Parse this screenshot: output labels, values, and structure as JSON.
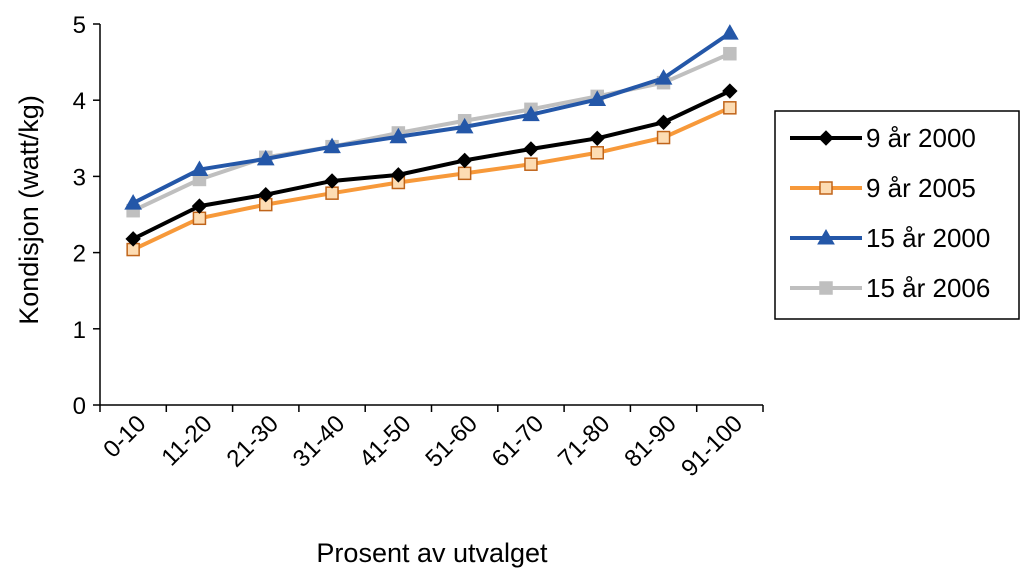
{
  "chart_data": {
    "type": "line",
    "title": "",
    "xlabel": "Prosent av utvalget",
    "ylabel": "Kondisjon (watt/kg)",
    "ylim": [
      0,
      5
    ],
    "yticks": [
      "0",
      "1",
      "2",
      "3",
      "4",
      "5"
    ],
    "categories": [
      "0-10",
      "11-20",
      "21-30",
      "31-40",
      "41-50",
      "51-60",
      "61-70",
      "71-80",
      "81-90",
      "91-100"
    ],
    "grid": false,
    "legend_position": "right",
    "series": [
      {
        "name": "9 år 2000",
        "color": "#000000",
        "marker": "diamond",
        "values": [
          2.18,
          2.61,
          2.76,
          2.94,
          3.02,
          3.21,
          3.36,
          3.5,
          3.71,
          4.12
        ]
      },
      {
        "name": "9 år 2005",
        "color": "#F7993A",
        "marker": "square",
        "values": [
          2.04,
          2.45,
          2.63,
          2.78,
          2.92,
          3.04,
          3.16,
          3.31,
          3.51,
          3.9
        ]
      },
      {
        "name": "15 år 2000",
        "color": "#2457A8",
        "marker": "triangle",
        "values": [
          2.65,
          3.09,
          3.23,
          3.39,
          3.52,
          3.65,
          3.81,
          4.01,
          4.29,
          4.88
        ]
      },
      {
        "name": "15 år 2006",
        "color": "#BFBFBF",
        "marker": "square",
        "values": [
          2.55,
          2.96,
          3.25,
          3.39,
          3.57,
          3.73,
          3.88,
          4.05,
          4.23,
          4.61
        ]
      }
    ]
  }
}
